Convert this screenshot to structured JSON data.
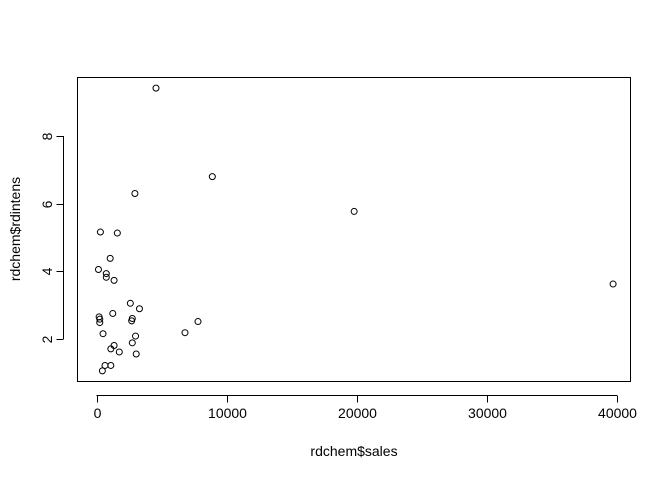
{
  "chart_data": {
    "type": "scatter",
    "title": "",
    "xlabel": "rdchem$sales",
    "ylabel": "rdchem$rdintens",
    "xlim": [
      -1500,
      41000
    ],
    "ylim": [
      0.75,
      9.75
    ],
    "x_ticks": [
      0,
      10000,
      20000,
      30000,
      40000
    ],
    "y_ticks": [
      2,
      4,
      6,
      8
    ],
    "x_tick_labels": [
      "0",
      "10000",
      "20000",
      "30000",
      "40000"
    ],
    "y_tick_labels": [
      "2",
      "4",
      "6",
      "8"
    ],
    "grid": false,
    "legend": "none",
    "marker": "open-circle",
    "point_color": "#000000",
    "points": [
      {
        "x": 4570,
        "y": 9.42
      },
      {
        "x": 8900,
        "y": 6.8
      },
      {
        "x": 2950,
        "y": 6.3
      },
      {
        "x": 19800,
        "y": 5.77
      },
      {
        "x": 300,
        "y": 5.16
      },
      {
        "x": 1600,
        "y": 5.13
      },
      {
        "x": 1050,
        "y": 4.38
      },
      {
        "x": 150,
        "y": 4.05
      },
      {
        "x": 750,
        "y": 3.93
      },
      {
        "x": 750,
        "y": 3.82
      },
      {
        "x": 1350,
        "y": 3.73
      },
      {
        "x": 39700,
        "y": 3.62
      },
      {
        "x": 2600,
        "y": 3.05
      },
      {
        "x": 3300,
        "y": 2.89
      },
      {
        "x": 1250,
        "y": 2.75
      },
      {
        "x": 200,
        "y": 2.65
      },
      {
        "x": 250,
        "y": 2.58
      },
      {
        "x": 2750,
        "y": 2.6
      },
      {
        "x": 2700,
        "y": 2.53
      },
      {
        "x": 7800,
        "y": 2.51
      },
      {
        "x": 250,
        "y": 2.48
      },
      {
        "x": 500,
        "y": 2.15
      },
      {
        "x": 6800,
        "y": 2.18
      },
      {
        "x": 3000,
        "y": 2.08
      },
      {
        "x": 2750,
        "y": 1.88
      },
      {
        "x": 1350,
        "y": 1.8
      },
      {
        "x": 1100,
        "y": 1.7
      },
      {
        "x": 1750,
        "y": 1.61
      },
      {
        "x": 3050,
        "y": 1.55
      },
      {
        "x": 650,
        "y": 1.21
      },
      {
        "x": 1100,
        "y": 1.21
      },
      {
        "x": 450,
        "y": 1.05
      }
    ]
  }
}
